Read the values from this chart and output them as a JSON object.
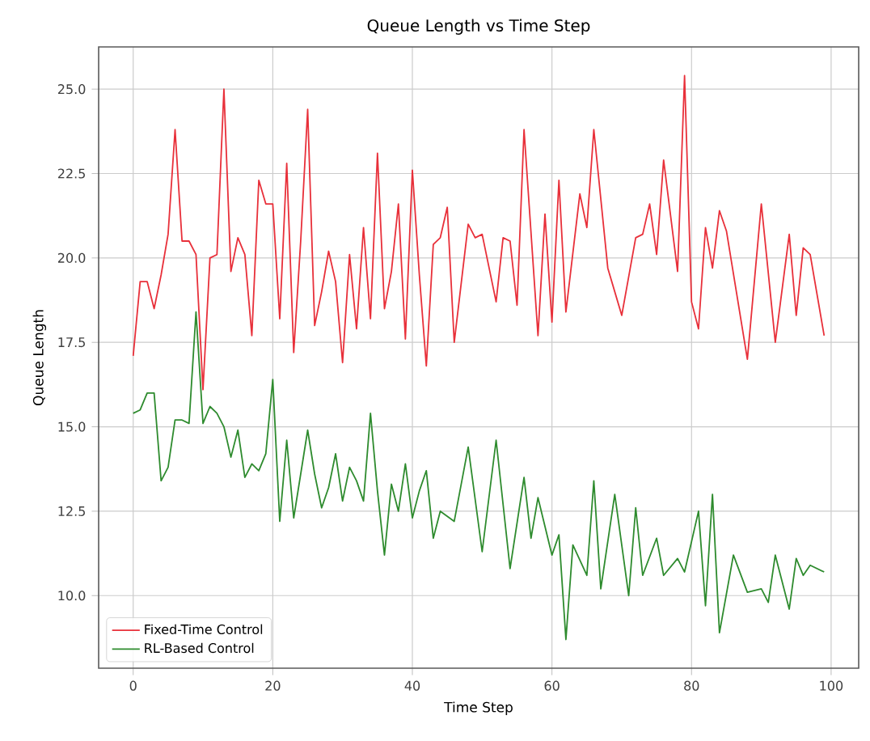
{
  "chart_data": {
    "type": "line",
    "title": "Queue Length vs Time Step",
    "xlabel": "Time Step",
    "ylabel": "Queue Length",
    "xlim": [
      -4.95,
      103.95
    ],
    "ylim": [
      7.85,
      26.25
    ],
    "xticks": [
      0,
      20,
      40,
      60,
      80,
      100
    ],
    "yticks": [
      {
        "value": 10,
        "label": "10.0"
      },
      {
        "value": 12.5,
        "label": "12.5"
      },
      {
        "value": 15,
        "label": "15.0"
      },
      {
        "value": 17.5,
        "label": "17.5"
      },
      {
        "value": 20,
        "label": "20.0"
      },
      {
        "value": 22.5,
        "label": "22.5"
      },
      {
        "value": 25,
        "label": "25.0"
      }
    ],
    "grid": true,
    "legend": "bottom left",
    "marker": "none",
    "line_style": "solid",
    "series": [
      {
        "name": "Fixed-Time Control",
        "color": "#e8303a",
        "x": [
          0,
          1,
          2,
          3,
          4,
          5,
          6,
          7,
          8,
          9,
          10,
          11,
          12,
          13,
          14,
          15,
          16,
          17,
          18,
          19,
          20,
          21,
          22,
          23,
          24,
          25,
          26,
          27,
          28,
          29,
          30,
          31,
          32,
          33,
          34,
          35,
          36,
          37,
          38,
          39,
          40,
          41,
          42,
          43,
          44,
          45,
          46,
          48,
          49,
          50,
          52,
          53,
          54,
          55,
          56,
          58,
          59,
          60,
          61,
          62,
          64,
          65,
          66,
          68,
          70,
          72,
          73,
          74,
          75,
          76,
          78,
          79,
          80,
          81,
          82,
          83,
          84,
          85,
          88,
          90,
          92,
          94,
          95,
          96,
          97,
          99
        ],
        "values": [
          17.1,
          19.3,
          19.3,
          18.5,
          19.5,
          20.7,
          23.8,
          20.5,
          20.5,
          20.1,
          16.1,
          20.0,
          20.1,
          25.0,
          19.6,
          20.6,
          20.1,
          17.7,
          22.3,
          21.6,
          21.6,
          18.2,
          22.8,
          17.2,
          20.5,
          24.4,
          18.0,
          19.0,
          20.2,
          19.3,
          16.9,
          20.1,
          17.9,
          20.9,
          18.2,
          23.1,
          18.5,
          19.6,
          21.6,
          17.6,
          22.6,
          19.5,
          16.8,
          20.4,
          20.6,
          21.5,
          17.5,
          21.0,
          20.6,
          20.7,
          18.7,
          20.6,
          20.5,
          18.6,
          23.8,
          17.7,
          21.3,
          18.1,
          22.3,
          18.4,
          21.9,
          20.9,
          23.8,
          19.7,
          18.3,
          20.6,
          20.7,
          21.6,
          20.1,
          22.9,
          19.6,
          25.4,
          18.7,
          17.9,
          20.9,
          19.7,
          21.4,
          20.8,
          17.0,
          21.6,
          17.5,
          20.7,
          18.3,
          20.3,
          20.1,
          17.7
        ]
      },
      {
        "name": "RL-Based Control",
        "color": "#2e8b2e",
        "x": [
          0,
          1,
          2,
          3,
          4,
          5,
          6,
          7,
          8,
          9,
          10,
          11,
          12,
          13,
          14,
          15,
          16,
          17,
          18,
          19,
          20,
          21,
          22,
          23,
          24,
          25,
          26,
          27,
          28,
          29,
          30,
          31,
          32,
          33,
          34,
          35,
          36,
          37,
          38,
          39,
          40,
          41,
          42,
          43,
          44,
          46,
          48,
          50,
          52,
          54,
          56,
          57,
          58,
          60,
          61,
          62,
          63,
          65,
          66,
          67,
          69,
          71,
          72,
          73,
          75,
          76,
          78,
          79,
          81,
          82,
          83,
          84,
          86,
          88,
          90,
          91,
          92,
          94,
          95,
          96,
          97,
          99
        ],
        "values": [
          15.4,
          15.5,
          16.0,
          16.0,
          13.4,
          13.8,
          15.2,
          15.2,
          15.1,
          18.4,
          15.1,
          15.6,
          15.4,
          15.0,
          14.1,
          14.9,
          13.5,
          13.9,
          13.7,
          14.2,
          16.4,
          12.2,
          14.6,
          12.3,
          13.6,
          14.9,
          13.6,
          12.6,
          13.2,
          14.2,
          12.8,
          13.8,
          13.4,
          12.8,
          15.4,
          13.1,
          11.2,
          13.3,
          12.5,
          13.9,
          12.3,
          13.1,
          13.7,
          11.7,
          12.5,
          12.2,
          14.4,
          11.3,
          14.6,
          10.8,
          13.5,
          11.7,
          12.9,
          11.2,
          11.8,
          8.7,
          11.5,
          10.6,
          13.4,
          10.2,
          13.0,
          10.0,
          12.6,
          10.6,
          11.7,
          10.6,
          11.1,
          10.7,
          12.5,
          9.7,
          13.0,
          8.9,
          11.2,
          10.1,
          10.2,
          9.8,
          11.2,
          9.6,
          11.1,
          10.6,
          10.9,
          10.7
        ]
      }
    ]
  }
}
